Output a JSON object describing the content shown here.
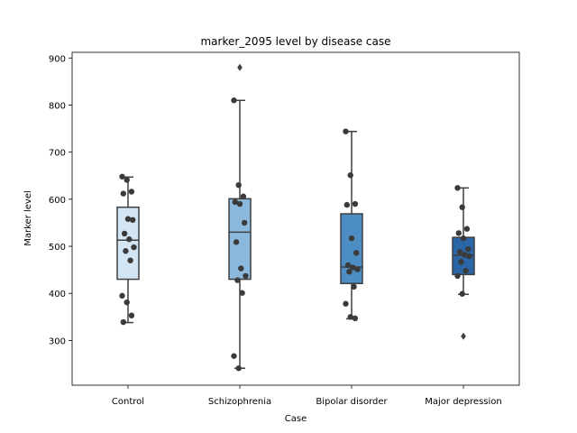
{
  "chart_data": {
    "type": "box",
    "title": "marker_2095 level by disease case",
    "xlabel": "Case",
    "ylabel": "Marker level",
    "ylim": [
      205,
      912
    ],
    "yticks": [
      300,
      400,
      500,
      600,
      700,
      800,
      900
    ],
    "grid": false,
    "categories": [
      "Control",
      "Schizophrenia",
      "Bipolar disorder",
      "Major depression"
    ],
    "box_colors": [
      "#d3e4f3",
      "#8ab9dd",
      "#4c8ec3",
      "#2a66a6"
    ],
    "boxes": [
      {
        "category": "Control",
        "whisker_low": 338,
        "q1": 430,
        "median": 513,
        "q3": 583,
        "whisker_high": 647,
        "outliers": []
      },
      {
        "category": "Schizophrenia",
        "whisker_low": 241,
        "q1": 430,
        "median": 530,
        "q3": 601,
        "whisker_high": 810,
        "outliers": [
          880
        ]
      },
      {
        "category": "Bipolar disorder",
        "whisker_low": 346,
        "q1": 421,
        "median": 456,
        "q3": 569,
        "whisker_high": 744,
        "outliers": []
      },
      {
        "category": "Major depression",
        "whisker_low": 398,
        "q1": 440,
        "median": 481,
        "q3": 519,
        "whisker_high": 624,
        "outliers": [
          309
        ]
      }
    ],
    "points": [
      [
        648,
        641,
        616,
        612,
        558,
        556,
        527,
        515,
        498,
        490,
        470,
        395,
        381,
        353,
        339
      ],
      [
        810,
        630,
        606,
        594,
        590,
        550,
        509,
        453,
        437,
        428,
        401,
        267,
        241
      ],
      [
        744,
        651,
        590,
        588,
        517,
        486,
        460,
        455,
        451,
        446,
        414,
        378,
        350,
        347
      ],
      [
        624,
        583,
        537,
        528,
        517,
        494,
        488,
        482,
        479,
        467,
        448,
        437,
        399
      ]
    ]
  }
}
